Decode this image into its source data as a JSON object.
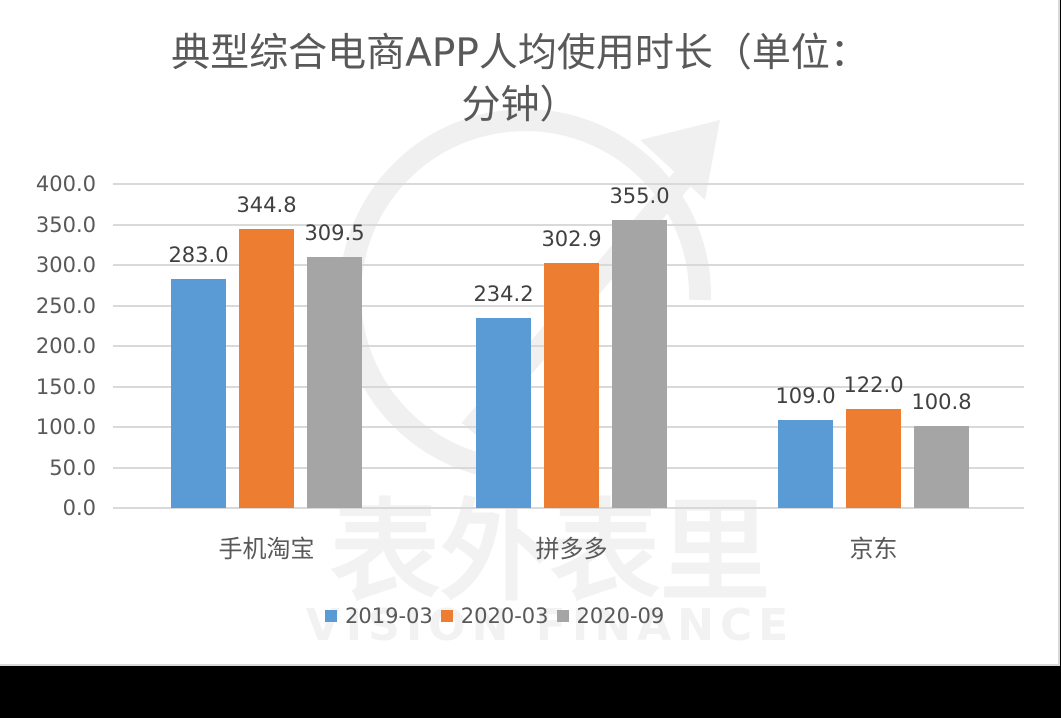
{
  "chart_data": {
    "type": "bar",
    "title": "典型综合电商APP人均使用时长（单位：分钟）",
    "title_lines": [
      "典型综合电商APP人均使用时长（单位：",
      "分钟）"
    ],
    "categories": [
      "手机淘宝",
      "拼多多",
      "京东"
    ],
    "series": [
      {
        "name": "2019-03",
        "color": "#5b9bd5",
        "values": [
          283.0,
          234.2,
          109.0
        ],
        "labels": [
          "283.0",
          "234.2",
          "109.0"
        ]
      },
      {
        "name": "2020-03",
        "color": "#ed7d31",
        "values": [
          344.8,
          302.9,
          122.0
        ],
        "labels": [
          "344.8",
          "302.9",
          "122.0"
        ]
      },
      {
        "name": "2020-09",
        "color": "#a5a5a5",
        "values": [
          309.5,
          355.0,
          100.8
        ],
        "labels": [
          "309.5",
          "355.0",
          "100.8"
        ]
      }
    ],
    "xlabel": "",
    "ylabel": "",
    "ylim": [
      0,
      400
    ],
    "yticks": [
      "0.0",
      "50.0",
      "100.0",
      "150.0",
      "200.0",
      "250.0",
      "300.0",
      "350.0",
      "400.0"
    ],
    "grid": true,
    "legend_position": "bottom"
  },
  "watermark": {
    "text_cn": "表外表里",
    "text_en": "VISION FINANCE"
  }
}
